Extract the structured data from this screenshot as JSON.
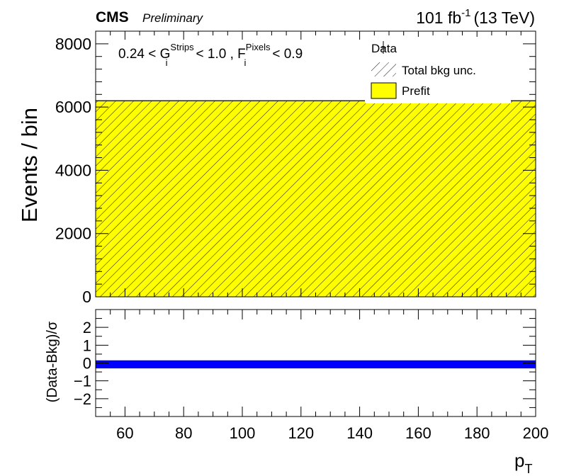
{
  "header": {
    "experiment": "CMS",
    "status": "Preliminary",
    "lumi_value": "101 fb",
    "lumi_exp": "-1",
    "energy": "(13 TeV)"
  },
  "selection": {
    "prefix": "0.24 < G",
    "g_sup": "Strips",
    "g_sub": "i",
    "middle": "< 1.0 , F",
    "f_sup": "Pixels",
    "f_sub": "i",
    "suffix": "< 0.9"
  },
  "legend": {
    "data_label": "Data",
    "unc_label": "Total bkg unc.",
    "prefit_label": "Prefit"
  },
  "colors": {
    "prefit_fill": "#ffff00",
    "pull_band": "#0000ff",
    "hatch": "#000000"
  },
  "chart_data": [
    {
      "type": "bar",
      "panel": "main",
      "ylabel": "Events / bin",
      "xlim": [
        50,
        200
      ],
      "ylim": [
        0,
        8400
      ],
      "yticks": [
        0,
        2000,
        4000,
        6000,
        8000
      ],
      "ytick_labels": [
        "0",
        "2000",
        "4000",
        "6000",
        "8000"
      ],
      "bins": [
        [
          50,
          200
        ]
      ],
      "series": [
        {
          "name": "Prefit",
          "values": [
            6200
          ]
        },
        {
          "name": "Total bkg unc.",
          "values": [
            6200
          ],
          "uncertainty": [
            0
          ]
        },
        {
          "name": "Data",
          "values": [
            null
          ]
        }
      ]
    },
    {
      "type": "bar",
      "panel": "ratio",
      "ylabel": "(Data-Bkg)/σ",
      "xlabel_main": "p",
      "xlabel_sub": "T",
      "xlim": [
        50,
        200
      ],
      "ylim": [
        -3,
        3
      ],
      "yticks": [
        -2,
        -1,
        0,
        1,
        2
      ],
      "ytick_labels": [
        "−2",
        "−1",
        "0",
        "1",
        "2"
      ],
      "xticks": [
        60,
        80,
        100,
        120,
        140,
        160,
        180,
        200
      ],
      "xtick_labels": [
        "60",
        "80",
        "100",
        "120",
        "140",
        "160",
        "180",
        "200"
      ],
      "bins": [
        [
          50,
          200
        ]
      ],
      "series": [
        {
          "name": "pull",
          "values": [
            0.0
          ],
          "band_low": [
            -0.3
          ],
          "band_high": [
            0.15
          ]
        }
      ]
    }
  ]
}
